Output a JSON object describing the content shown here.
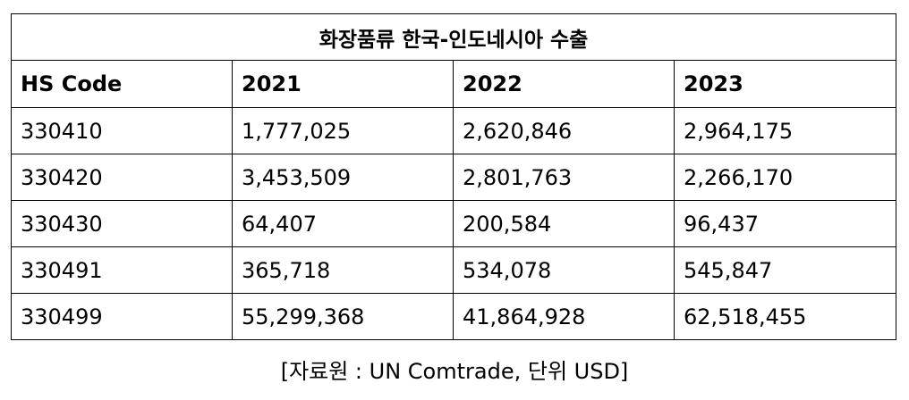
{
  "table": {
    "title": "화장품류 한국-인도네시아 수출",
    "columns": [
      "HS Code",
      "2021",
      "2022",
      "2023"
    ],
    "rows": [
      [
        "330410",
        "1,777,025",
        "2,620,846",
        "2,964,175"
      ],
      [
        "330420",
        "3,453,509",
        "2,801,763",
        "2,266,170"
      ],
      [
        "330430",
        "64,407",
        "200,584",
        "96,437"
      ],
      [
        "330491",
        "365,718",
        "534,078",
        "545,847"
      ],
      [
        "330499",
        "55,299,368",
        "41,864,928",
        "62,518,455"
      ]
    ]
  },
  "source_note": "[자료원 : UN Comtrade, 단위 USD]"
}
